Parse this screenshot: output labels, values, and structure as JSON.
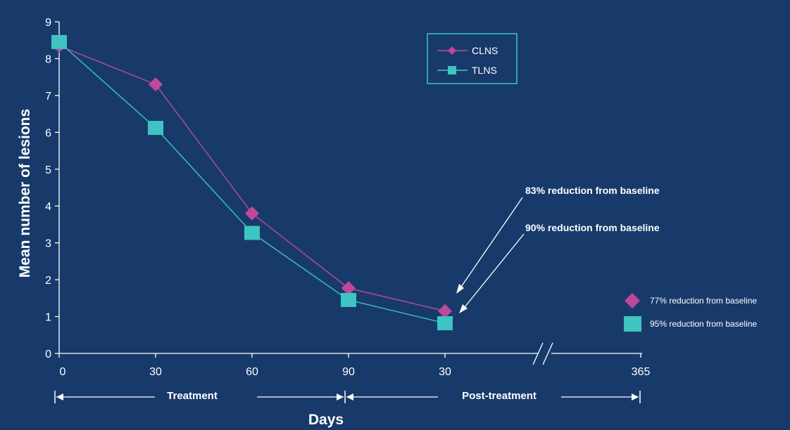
{
  "chart_data": {
    "type": "line",
    "x_tick_labels": [
      "0",
      "30",
      "60",
      "90",
      "30",
      "365"
    ],
    "y_ticks": [
      "0",
      "1",
      "2",
      "3",
      "4",
      "5",
      "6",
      "7",
      "8",
      "9"
    ],
    "ylim": [
      0,
      9
    ],
    "ylabel": "Mean number of lesions",
    "xlabel": "Days",
    "grid": false,
    "legend_position": "top-center",
    "series": [
      {
        "name": "CLNS",
        "color": "#c0489a",
        "marker": "diamond",
        "values": [
          8.35,
          7.3,
          3.8,
          1.77,
          1.15
        ]
      },
      {
        "name": "TLNS",
        "color": "#3ec4c1",
        "marker": "square",
        "values": [
          8.45,
          6.12,
          3.27,
          1.45,
          0.82
        ]
      }
    ],
    "annotations": [
      "83% reduction from baseline",
      "90% reduction from baseline"
    ],
    "phases": [
      "Treatment",
      "Post-treatment"
    ],
    "side_legend": [
      {
        "label": "77% reduction from baseline",
        "marker": "diamond",
        "color": "#c0489a"
      },
      {
        "label": "95% reduction from baseline",
        "marker": "square",
        "color": "#3ec4c1"
      }
    ]
  },
  "colors": {
    "background": "#173a6b",
    "axis": "#ffffff"
  }
}
